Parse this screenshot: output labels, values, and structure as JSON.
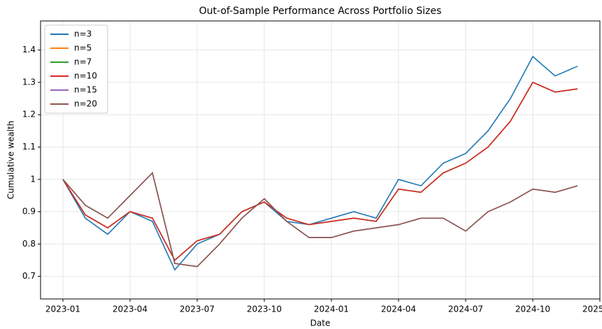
{
  "chart_data": {
    "type": "line",
    "title": "Out-of-Sample Performance Across Portfolio Sizes",
    "xlabel": "Date",
    "ylabel": "Cumulative wealth",
    "x": [
      "2023-01",
      "2023-02",
      "2023-03",
      "2023-04",
      "2023-05",
      "2023-06",
      "2023-07",
      "2023-08",
      "2023-09",
      "2023-10",
      "2023-11",
      "2023-12",
      "2024-01",
      "2024-02",
      "2024-03",
      "2024-04",
      "2024-05",
      "2024-06",
      "2024-07",
      "2024-08",
      "2024-09",
      "2024-10",
      "2024-11",
      "2024-12"
    ],
    "series": [
      {
        "name": "n=3",
        "color": "#1f77b4",
        "values": [
          1.0,
          0.88,
          0.83,
          0.9,
          0.87,
          0.72,
          0.8,
          0.83,
          0.9,
          0.93,
          0.87,
          0.86,
          0.88,
          0.9,
          0.88,
          1.0,
          0.98,
          1.05,
          1.08,
          1.15,
          1.25,
          1.38,
          1.32,
          1.35
        ]
      },
      {
        "name": "n=5",
        "color": "#ff7f0e",
        "values": [
          1.0,
          0.89,
          0.85,
          0.9,
          0.88,
          0.75,
          0.81,
          0.83,
          0.9,
          0.93,
          0.88,
          0.86,
          0.87,
          0.88,
          0.87,
          0.97,
          0.96,
          1.02,
          1.05,
          1.1,
          1.18,
          1.3,
          1.27,
          1.28
        ]
      },
      {
        "name": "n=7",
        "color": "#2ca02c",
        "values": [
          1.0,
          0.89,
          0.85,
          0.9,
          0.88,
          0.75,
          0.81,
          0.83,
          0.9,
          0.93,
          0.88,
          0.86,
          0.87,
          0.88,
          0.87,
          0.97,
          0.96,
          1.02,
          1.05,
          1.1,
          1.18,
          1.3,
          1.27,
          1.28
        ]
      },
      {
        "name": "n=10",
        "color": "#d62728",
        "values": [
          1.0,
          0.89,
          0.85,
          0.9,
          0.88,
          0.75,
          0.81,
          0.83,
          0.9,
          0.93,
          0.88,
          0.86,
          0.87,
          0.88,
          0.87,
          0.97,
          0.96,
          1.02,
          1.05,
          1.1,
          1.18,
          1.3,
          1.27,
          1.28
        ]
      },
      {
        "name": "n=15",
        "color": "#9467bd",
        "values": [
          1.0,
          0.92,
          0.88,
          0.95,
          1.02,
          0.74,
          0.73,
          0.8,
          0.88,
          0.94,
          0.87,
          0.82,
          0.82,
          0.84,
          0.85,
          0.86,
          0.88,
          0.88,
          0.84,
          0.9,
          0.93,
          0.97,
          0.96,
          0.98
        ]
      },
      {
        "name": "n=20",
        "color": "#8c564b",
        "values": [
          1.0,
          0.92,
          0.88,
          0.95,
          1.02,
          0.74,
          0.73,
          0.8,
          0.88,
          0.94,
          0.87,
          0.82,
          0.82,
          0.84,
          0.85,
          0.86,
          0.88,
          0.88,
          0.84,
          0.9,
          0.93,
          0.97,
          0.96,
          0.98
        ]
      }
    ],
    "xlim": [
      "2022-12",
      "2025-01"
    ],
    "xticks": [
      "2023-01",
      "2023-04",
      "2023-07",
      "2023-10",
      "2024-01",
      "2024-04",
      "2024-07",
      "2024-10",
      "2025-01"
    ],
    "ylim": [
      0.63,
      1.49
    ],
    "yticks": [
      0.7,
      0.8,
      0.9,
      1.0,
      1.1,
      1.2,
      1.3,
      1.4
    ],
    "grid": true,
    "legend": "upper left"
  }
}
